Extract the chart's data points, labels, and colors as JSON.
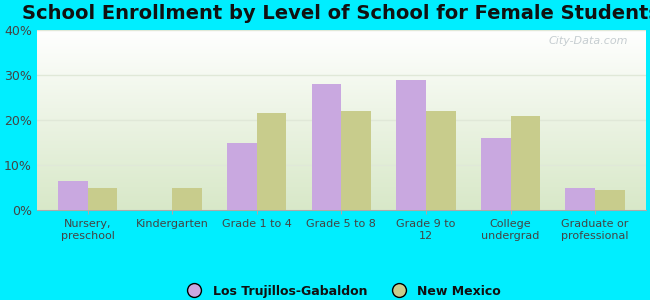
{
  "title": "School Enrollment by Level of School for Female Students",
  "categories": [
    "Nursery,\npreschool",
    "Kindergarten",
    "Grade 1 to 4",
    "Grade 5 to 8",
    "Grade 9 to\n12",
    "College\nundergrad",
    "Graduate or\nprofessional"
  ],
  "los_trujillos": [
    6.5,
    0,
    15,
    28,
    29,
    16,
    5
  ],
  "new_mexico": [
    5,
    5,
    21.5,
    22,
    22,
    21,
    4.5
  ],
  "color_los": "#c9a8e0",
  "color_nm": "#c8cc8c",
  "ylim": [
    0,
    40
  ],
  "yticks": [
    0,
    10,
    20,
    30,
    40
  ],
  "ytick_labels": [
    "0%",
    "10%",
    "20%",
    "30%",
    "40%"
  ],
  "background_outer": "#00eeff",
  "background_plot_top": "#ffffff",
  "background_plot_bottom": "#d8e8c8",
  "legend_label_los": "Los Trujillos-Gabaldon",
  "legend_label_nm": "New Mexico",
  "bar_width": 0.35,
  "title_fontsize": 14,
  "watermark_text": "City-Data.com",
  "watermark_color": "#c0c8cc",
  "grid_color": "#e0e8d8"
}
